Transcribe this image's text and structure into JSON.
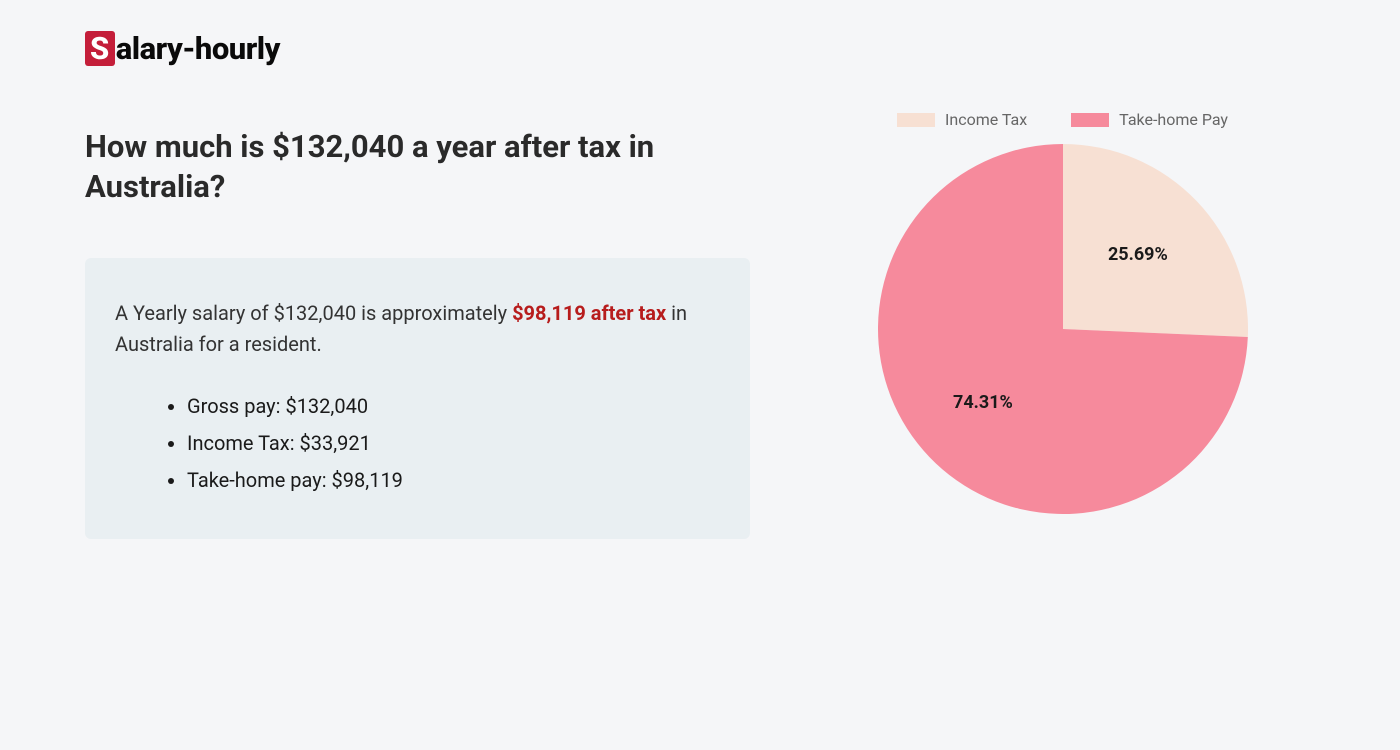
{
  "logo": {
    "badge_letter": "S",
    "rest": "alary-hourly",
    "badge_bg": "#c41e3a",
    "badge_fg": "#ffffff",
    "text_color": "#0a0a0a"
  },
  "headline": "How much is $132,040 a year after tax in Australia?",
  "summary": {
    "prefix": "A Yearly salary of $132,040 is approximately ",
    "highlight": "$98,119 after tax",
    "suffix": " in Australia for a resident.",
    "highlight_color": "#b71c1c",
    "box_bg": "#e9eff2"
  },
  "details": [
    "Gross pay: $132,040",
    "Income Tax: $33,921",
    "Take-home pay: $98,119"
  ],
  "chart": {
    "type": "pie",
    "radius": 185,
    "background_color": "#f5f6f8",
    "legend": [
      {
        "label": "Income Tax",
        "color": "#f7e0d3"
      },
      {
        "label": "Take-home Pay",
        "color": "#f68a9c"
      }
    ],
    "slices": [
      {
        "label": "25.69%",
        "value": 25.69,
        "color": "#f7e0d3"
      },
      {
        "label": "74.31%",
        "value": 74.31,
        "color": "#f68a9c"
      }
    ],
    "start_angle_deg": 0,
    "label_fontsize": 18,
    "label_fontweight": 700,
    "label_color": "#1a1a1a",
    "legend_fontsize": 16,
    "legend_color": "#666666"
  },
  "page_bg": "#f5f6f8"
}
